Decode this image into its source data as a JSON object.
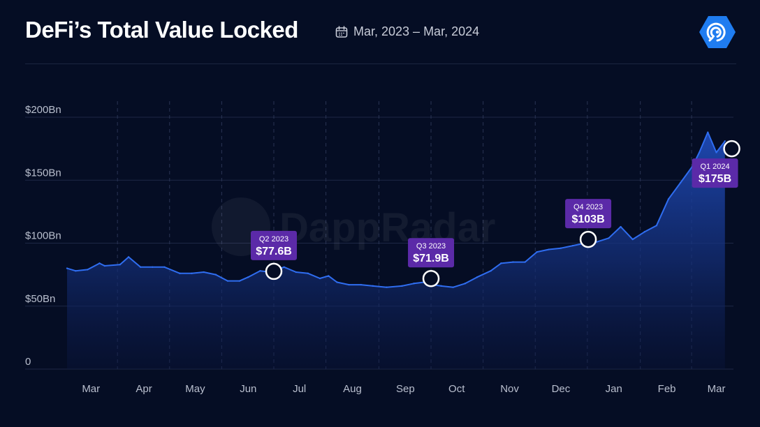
{
  "header": {
    "title": "DeFi’s Total Value Locked",
    "date_range": "Mar, 2023 – Mar, 2024",
    "calendar_icon": "calendar-icon",
    "logo": "dappradar-logo"
  },
  "watermark": "DappRadar",
  "colors": {
    "background": "#050d24",
    "line": "#2f6df0",
    "area_top": "#1f4bb8",
    "badge": "#5b2aa8",
    "logo": "#1f7cf0"
  },
  "chart_data": {
    "type": "area",
    "title": "DeFi’s Total Value Locked",
    "xlabel": "",
    "ylabel": "",
    "ylim": [
      0,
      200
    ],
    "grid": true,
    "y_ticks": [
      {
        "value": 0,
        "label": "0"
      },
      {
        "value": 50,
        "label": "$50Bn"
      },
      {
        "value": 100,
        "label": "$100Bn"
      },
      {
        "value": 150,
        "label": "$150Bn"
      },
      {
        "value": 200,
        "label": "$200Bn"
      }
    ],
    "x_tick_labels": [
      "Mar",
      "Apr",
      "May",
      "Jun",
      "Jul",
      "Aug",
      "Sep",
      "Oct",
      "Nov",
      "Dec",
      "Jan",
      "Feb",
      "Mar"
    ],
    "x_tick_dates": [
      "2023-03-15",
      "2023-04-15",
      "2023-05-15",
      "2023-06-15",
      "2023-07-15",
      "2023-08-15",
      "2023-09-15",
      "2023-10-15",
      "2023-11-15",
      "2023-12-15",
      "2024-01-15",
      "2024-02-15",
      "2024-03-15"
    ],
    "x_range": [
      "2023-03-01",
      "2024-03-25"
    ],
    "series": [
      {
        "x": [
          "2023-03-01",
          "2023-03-06",
          "2023-03-13",
          "2023-03-20",
          "2023-03-23",
          "2023-04-01",
          "2023-04-06",
          "2023-04-13",
          "2023-04-20",
          "2023-04-27",
          "2023-05-06",
          "2023-05-13",
          "2023-05-20",
          "2023-05-27",
          "2023-06-03",
          "2023-06-10",
          "2023-06-15",
          "2023-06-22",
          "2023-06-28",
          "2023-07-06",
          "2023-07-13",
          "2023-07-20",
          "2023-07-27",
          "2023-08-01",
          "2023-08-06",
          "2023-08-13",
          "2023-08-20",
          "2023-08-27",
          "2023-09-04",
          "2023-09-13",
          "2023-09-20",
          "2023-09-26",
          "2023-10-01",
          "2023-10-06",
          "2023-10-13",
          "2023-10-20",
          "2023-10-27",
          "2023-11-04",
          "2023-11-10",
          "2023-11-17",
          "2023-11-24",
          "2023-12-01",
          "2023-12-08",
          "2023-12-15",
          "2023-12-22",
          "2023-12-29",
          "2024-01-05",
          "2024-01-12",
          "2024-01-19",
          "2024-01-26",
          "2024-02-02",
          "2024-02-09",
          "2024-02-16",
          "2024-02-23",
          "2024-03-01",
          "2024-03-05",
          "2024-03-10",
          "2024-03-15",
          "2024-03-20"
        ],
        "values": [
          80,
          78,
          79,
          84,
          82,
          83,
          89,
          81,
          81,
          81,
          76,
          76,
          77,
          75,
          70,
          70,
          73,
          78,
          77,
          81,
          77,
          76,
          72,
          74,
          69,
          67,
          67,
          66,
          65,
          66,
          68,
          69,
          67,
          66,
          65,
          68,
          73,
          78,
          84,
          85,
          85,
          93,
          95,
          96,
          98,
          100,
          101,
          104,
          113,
          103,
          109,
          114,
          135,
          148,
          161,
          172,
          188,
          172,
          181
        ]
      }
    ],
    "annotations": [
      {
        "quarter": "Q2 2023",
        "label": "$77.6B",
        "x": "2023-06-30",
        "y": 77.6
      },
      {
        "quarter": "Q3 2023",
        "label": "$71.9B",
        "x": "2023-09-30",
        "y": 71.9
      },
      {
        "quarter": "Q4 2023",
        "label": "$103B",
        "x": "2023-12-31",
        "y": 103
      },
      {
        "quarter": "Q1 2024",
        "label": "$175B",
        "x": "2024-03-24",
        "y": 175
      }
    ]
  }
}
